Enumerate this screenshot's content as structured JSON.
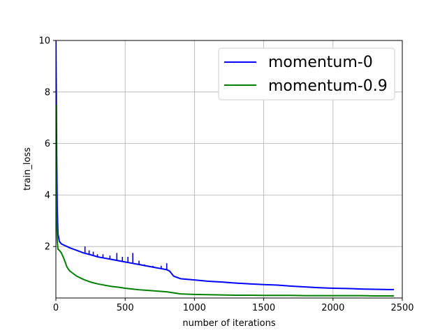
{
  "chart_data": {
    "type": "line",
    "xlabel": "number of iterations",
    "ylabel": "train_loss",
    "xlim": [
      0,
      2500
    ],
    "ylim": [
      0,
      10
    ],
    "x_ticks": [
      0,
      500,
      1000,
      1500,
      2000,
      2500
    ],
    "y_ticks": [
      2,
      4,
      6,
      8,
      10
    ],
    "grid": true,
    "legend_position": "top-right",
    "series": [
      {
        "name": "momentum-0",
        "color": "#0000ff",
        "x": [
          0,
          3,
          6,
          10,
          15,
          25,
          40,
          60,
          80,
          100,
          150,
          200,
          250,
          300,
          350,
          400,
          450,
          500,
          550,
          600,
          650,
          700,
          750,
          800,
          820,
          850,
          900,
          1000,
          1100,
          1200,
          1300,
          1400,
          1500,
          1600,
          1700,
          1800,
          1900,
          2000,
          2100,
          2200,
          2300,
          2400,
          2440
        ],
        "y": [
          10,
          8.0,
          5.5,
          3.5,
          2.5,
          2.2,
          2.1,
          2.05,
          2.0,
          1.95,
          1.85,
          1.75,
          1.68,
          1.6,
          1.55,
          1.5,
          1.45,
          1.4,
          1.35,
          1.3,
          1.25,
          1.2,
          1.15,
          1.1,
          1.05,
          0.85,
          0.75,
          0.7,
          0.65,
          0.62,
          0.58,
          0.55,
          0.52,
          0.5,
          0.46,
          0.43,
          0.4,
          0.38,
          0.37,
          0.35,
          0.34,
          0.33,
          0.33
        ]
      },
      {
        "name": "momentum-0.9",
        "color": "#008000",
        "x": [
          0,
          3,
          6,
          10,
          15,
          25,
          40,
          60,
          80,
          100,
          150,
          200,
          250,
          300,
          350,
          400,
          450,
          500,
          550,
          600,
          650,
          700,
          750,
          800,
          850,
          900,
          1000,
          1100,
          1200,
          1300,
          1400,
          1500,
          1600,
          1700,
          1800,
          1900,
          2000,
          2100,
          2200,
          2300,
          2400,
          2440
        ],
        "y": [
          7.5,
          5.0,
          3.0,
          2.2,
          1.9,
          1.85,
          1.75,
          1.5,
          1.2,
          1.05,
          0.85,
          0.72,
          0.62,
          0.55,
          0.5,
          0.45,
          0.42,
          0.38,
          0.35,
          0.32,
          0.3,
          0.28,
          0.26,
          0.24,
          0.2,
          0.16,
          0.14,
          0.13,
          0.12,
          0.11,
          0.11,
          0.1,
          0.1,
          0.1,
          0.09,
          0.09,
          0.09,
          0.09,
          0.09,
          0.08,
          0.08,
          0.08
        ]
      }
    ],
    "spikes": [
      {
        "series": 0,
        "x": 210,
        "y": 2.0
      },
      {
        "series": 0,
        "x": 240,
        "y": 1.85
      },
      {
        "series": 0,
        "x": 270,
        "y": 1.8
      },
      {
        "series": 0,
        "x": 300,
        "y": 1.7
      },
      {
        "series": 0,
        "x": 340,
        "y": 1.7
      },
      {
        "series": 0,
        "x": 390,
        "y": 1.65
      },
      {
        "series": 0,
        "x": 440,
        "y": 1.75
      },
      {
        "series": 0,
        "x": 480,
        "y": 1.6
      },
      {
        "series": 0,
        "x": 520,
        "y": 1.6
      },
      {
        "series": 0,
        "x": 555,
        "y": 1.75
      },
      {
        "series": 0,
        "x": 600,
        "y": 1.45
      },
      {
        "series": 0,
        "x": 640,
        "y": 1.3
      },
      {
        "series": 0,
        "x": 700,
        "y": 1.25
      },
      {
        "series": 0,
        "x": 760,
        "y": 1.25
      },
      {
        "series": 0,
        "x": 800,
        "y": 1.35
      }
    ]
  }
}
